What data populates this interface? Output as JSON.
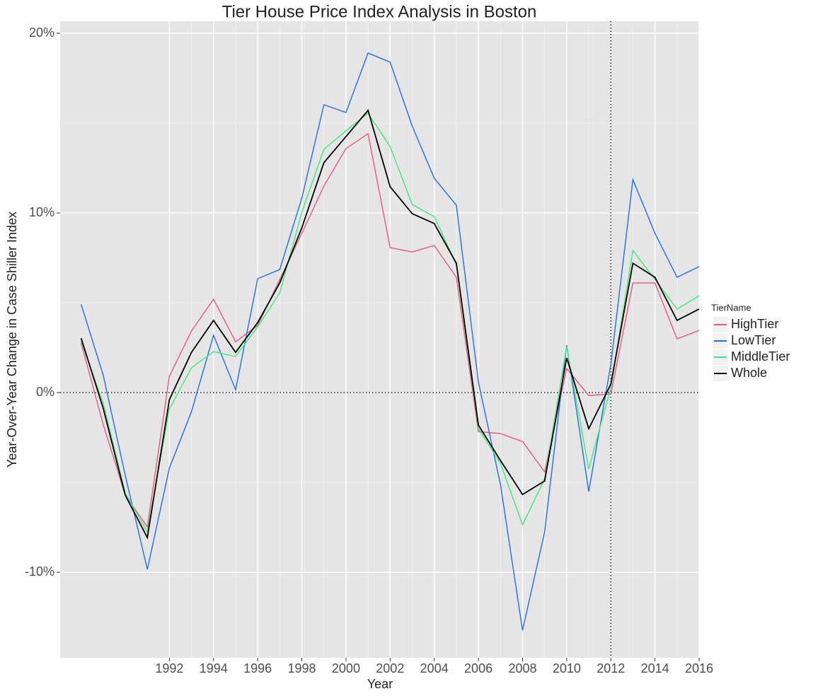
{
  "chart_data": {
    "type": "line",
    "title": "Tier House Price Index Analysis in  Boston",
    "x_label": "Year",
    "y_label": "Year-Over-Year Change in Case Shiller Index",
    "legend_title": "TierName",
    "legend_position": "right",
    "grid": true,
    "x": [
      1988,
      1989,
      1990,
      1991,
      1992,
      1993,
      1994,
      1995,
      1996,
      1997,
      1998,
      1999,
      2000,
      2001,
      2002,
      2003,
      2004,
      2005,
      2006,
      2007,
      2008,
      2009,
      2010,
      2011,
      2012,
      2013,
      2014,
      2015,
      2016
    ],
    "series": [
      {
        "name": "HighTier",
        "color": "#e8577f",
        "values": [
          2.76,
          -1.77,
          -5.71,
          -7.48,
          0.91,
          3.43,
          5.2,
          2.83,
          3.74,
          6.3,
          8.86,
          11.5,
          13.58,
          14.41,
          8.07,
          7.83,
          8.19,
          6.42,
          -2.17,
          -2.28,
          -2.72,
          -4.41,
          1.34,
          -0.16,
          -0.08,
          6.1,
          6.1,
          2.99,
          3.46
        ]
      },
      {
        "name": "LowTier",
        "color": "#1f6fe6",
        "values": [
          4.92,
          0.98,
          -4.6,
          -9.84,
          -4.2,
          -1.06,
          3.19,
          0.16,
          6.34,
          6.85,
          10.83,
          16.02,
          15.59,
          18.9,
          18.39,
          14.84,
          11.93,
          10.43,
          0.59,
          -5.12,
          -13.23,
          -7.76,
          2.64,
          -5.51,
          1.57,
          11.85,
          8.86,
          6.42,
          7.01
        ]
      },
      {
        "name": "MiddleTier",
        "color": "#3ee87a",
        "values": [
          2.87,
          -0.59,
          -5.59,
          -7.76,
          -0.91,
          1.38,
          2.28,
          2.01,
          3.66,
          5.55,
          10.04,
          13.54,
          14.57,
          15.55,
          13.7,
          10.47,
          9.8,
          7.13,
          -2.0,
          -3.94,
          -7.36,
          -4.8,
          2.56,
          -4.25,
          0.28,
          7.91,
          6.3,
          4.65,
          5.39
        ]
      },
      {
        "name": "Whole",
        "color": "#000000",
        "values": [
          3.03,
          -0.87,
          -5.71,
          -8.07,
          -0.39,
          2.24,
          4.02,
          2.24,
          3.9,
          6.1,
          9.17,
          12.8,
          14.25,
          15.71,
          11.46,
          9.96,
          9.41,
          7.2,
          -1.81,
          -3.78,
          -5.67,
          -4.92,
          1.93,
          -2.01,
          0.47,
          7.2,
          6.42,
          4.02,
          4.65
        ]
      }
    ],
    "xlim": [
      1987.05,
      2016
    ],
    "xticks": [
      1992,
      1994,
      1996,
      1998,
      2000,
      2002,
      2004,
      2006,
      2008,
      2010,
      2012,
      2014,
      2016
    ],
    "ylim": [
      -14.76,
      20.67
    ],
    "yticks": [
      {
        "value": -10,
        "label": "-10%"
      },
      {
        "value": 0,
        "label": "0%"
      },
      {
        "value": 10,
        "label": "10%"
      },
      {
        "value": 20,
        "label": "20%"
      }
    ],
    "hlines": [
      0
    ],
    "vlines": [
      2012
    ]
  }
}
